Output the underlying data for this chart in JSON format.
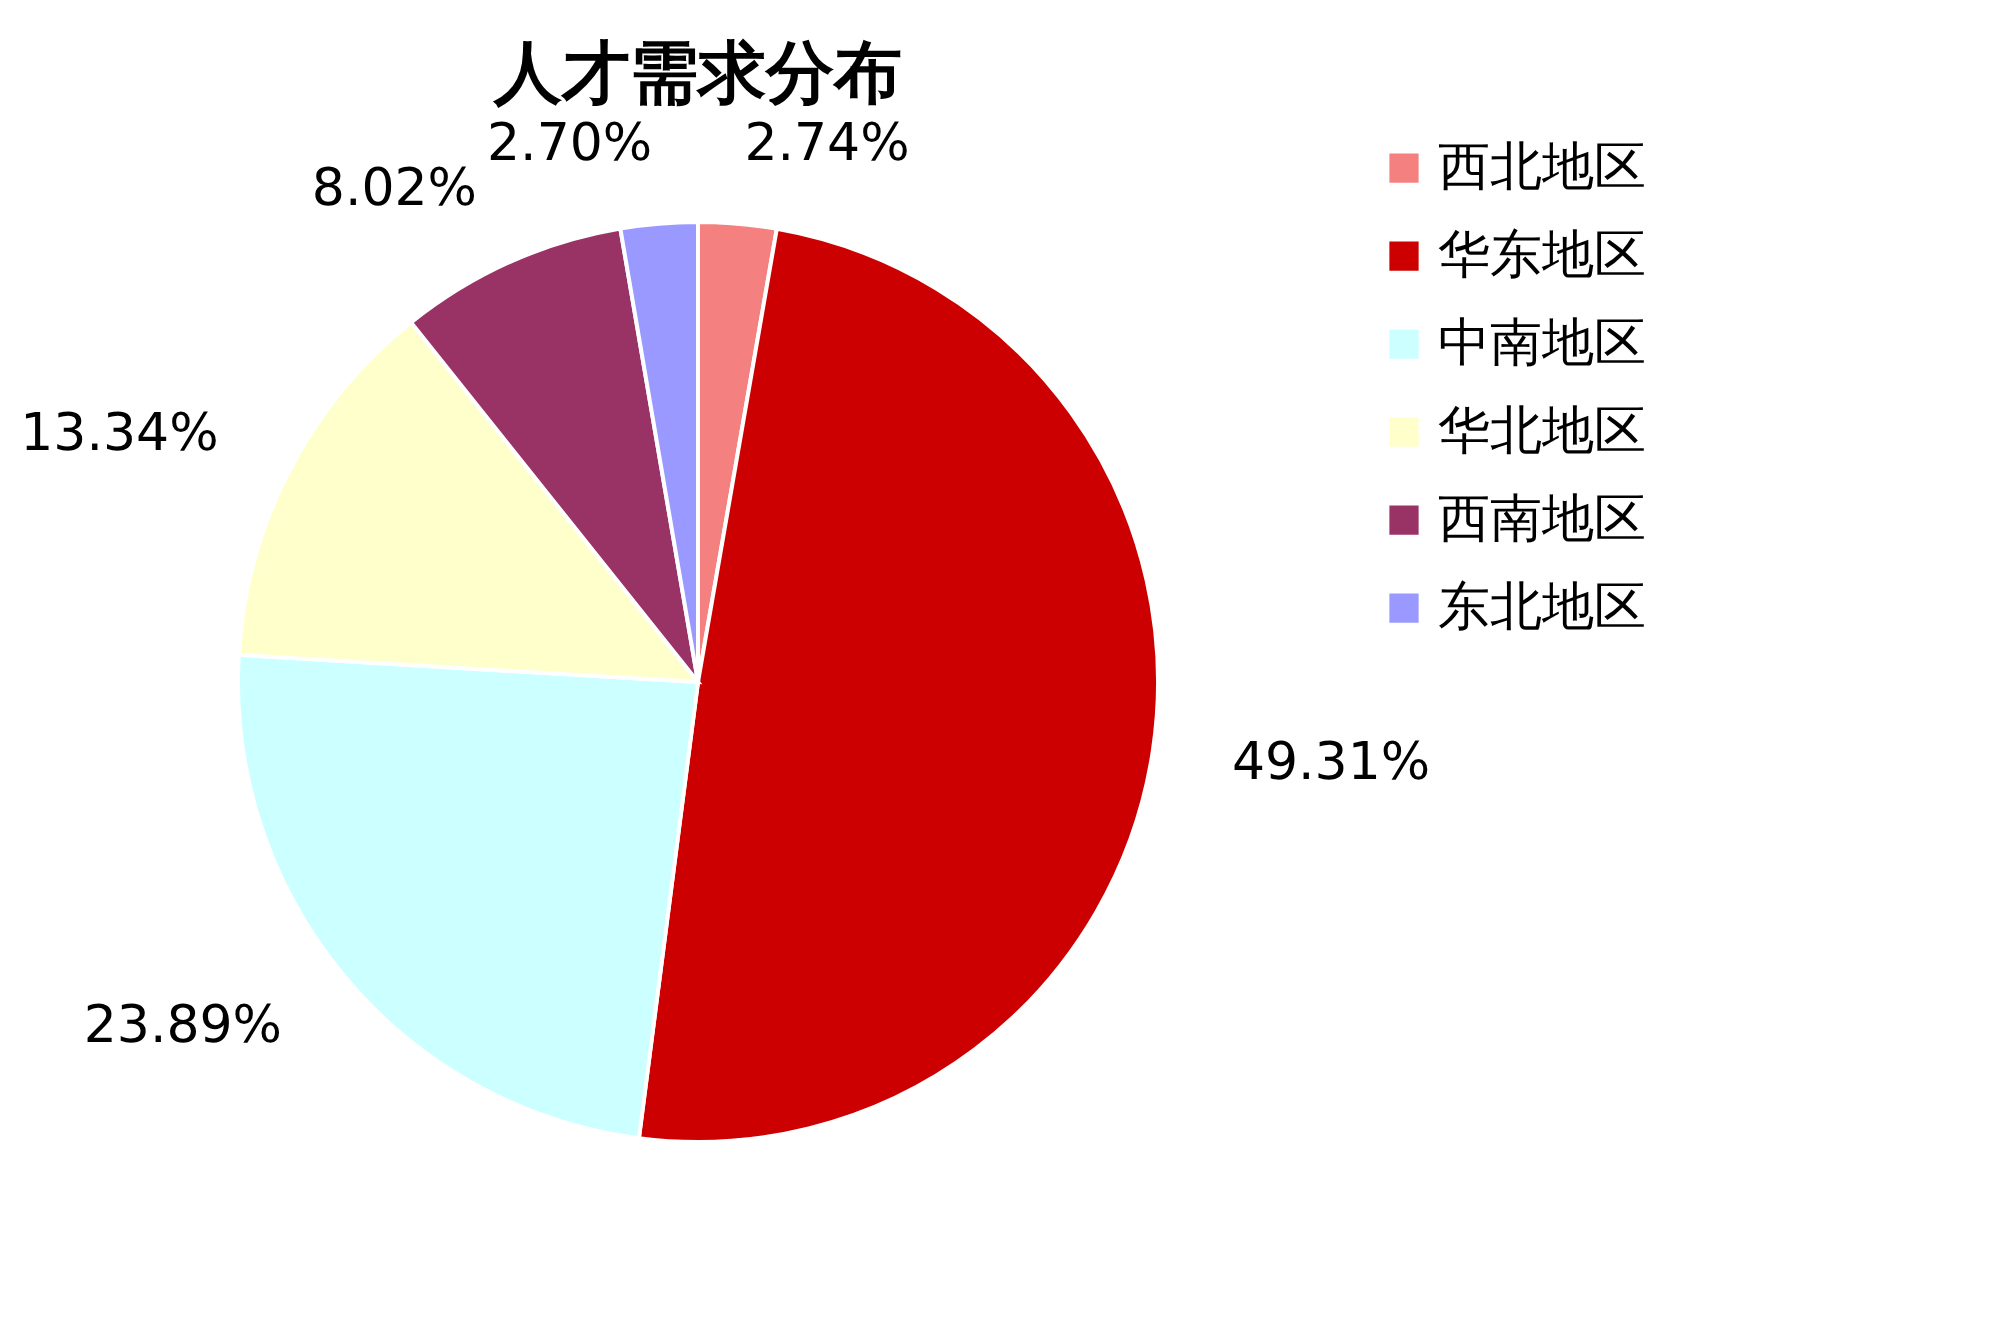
{
  "chart_data": {
    "type": "pie",
    "title": "人才需求分布",
    "categories": [
      "西北地区",
      "华东地区",
      "中南地区",
      "华北地区",
      "西南地区",
      "东北地区"
    ],
    "values": [
      2.74,
      49.31,
      23.89,
      13.34,
      8.02,
      2.7
    ],
    "colors": [
      "#f48080",
      "#cc0000",
      "#ccffff",
      "#ffffcc",
      "#993366",
      "#9999ff"
    ],
    "value_labels": [
      "2.74%",
      "49.31%",
      "23.89%",
      "13.34%",
      "8.02%",
      "2.70%"
    ],
    "legend": "right"
  }
}
